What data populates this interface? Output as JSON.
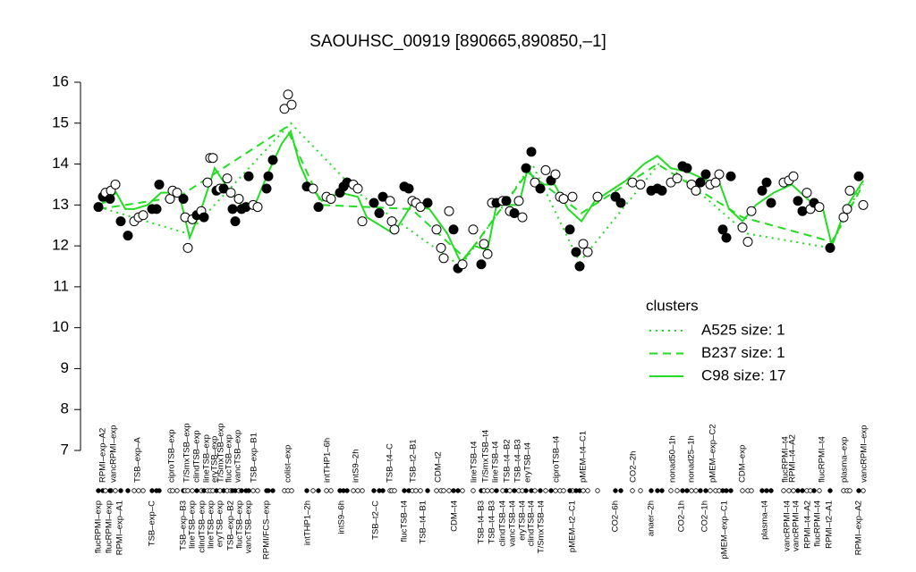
{
  "chart_data": {
    "type": "scatter",
    "title": "SAOUHSC_00919 [890665,890850,–1]",
    "ylim": [
      7,
      16
    ],
    "yticks": [
      7,
      8,
      9,
      10,
      11,
      12,
      13,
      14,
      15,
      16
    ],
    "xlim": [
      100,
      970
    ],
    "points": {
      "x": [
        110,
        115,
        118,
        124,
        123,
        129,
        135,
        143,
        150,
        155,
        160,
        170,
        175,
        178,
        190,
        193,
        198,
        205,
        207,
        210,
        215,
        220,
        225,
        228,
        232,
        235,
        238,
        242,
        246,
        250,
        254,
        258,
        260,
        263,
        267,
        270,
        275,
        278,
        283,
        288,
        298,
        300,
        305,
        318,
        322,
        326,
        343,
        350,
        356,
        365,
        370,
        380,
        384,
        388,
        395,
        400,
        405,
        418,
        424,
        428,
        436,
        438,
        441,
        452,
        457,
        461,
        465,
        470,
        478,
        488,
        493,
        496,
        502,
        507,
        512,
        517,
        529,
        538,
        541,
        545,
        550,
        555,
        562,
        566,
        570,
        575,
        580,
        584,
        588,
        594,
        598,
        604,
        610,
        616,
        621,
        626,
        630,
        640,
        637,
        644,
        648,
        652,
        657,
        668,
        688,
        694,
        707,
        716,
        728,
        735,
        740,
        750,
        757,
        763,
        768,
        773,
        778,
        783,
        789,
        794,
        800,
        804,
        808,
        812,
        817,
        830,
        836,
        840,
        852,
        857,
        862,
        876,
        882,
        887,
        892,
        897,
        902,
        906,
        910,
        916,
        928,
        943,
        947,
        950,
        960,
        965
      ],
      "values": [
        12.95,
        13.2,
        13.3,
        13.35,
        13.15,
        13.5,
        12.6,
        12.25,
        12.6,
        12.7,
        12.75,
        12.9,
        12.9,
        13.5,
        13.15,
        13.35,
        13.3,
        13.15,
        12.7,
        11.95,
        12.65,
        12.75,
        12.85,
        12.7,
        13.55,
        14.15,
        14.15,
        13.35,
        13.4,
        13.4,
        13.65,
        13.3,
        12.9,
        12.6,
        13.15,
        12.9,
        12.95,
        13.7,
        13.0,
        12.95,
        13.4,
        13.7,
        14.1,
        15.35,
        15.7,
        15.45,
        13.45,
        13.4,
        12.95,
        13.2,
        13.15,
        13.3,
        13.45,
        13.55,
        13.5,
        13.4,
        12.6,
        13.05,
        12.8,
        13.2,
        13.1,
        12.6,
        12.4,
        13.45,
        13.4,
        13.1,
        13.05,
        12.95,
        13.05,
        12.4,
        11.95,
        11.7,
        12.85,
        12.4,
        11.45,
        11.55,
        12.4,
        11.55,
        12.05,
        11.8,
        13.05,
        13.05,
        13.1,
        13.1,
        12.85,
        12.8,
        13.1,
        12.7,
        13.9,
        14.3,
        13.55,
        13.4,
        13.85,
        13.6,
        13.75,
        13.2,
        13.15,
        13.2,
        12.4,
        11.85,
        11.5,
        12.05,
        11.85,
        13.2,
        13.2,
        13.05,
        13.55,
        13.5,
        13.35,
        13.4,
        13.35,
        13.55,
        13.65,
        13.95,
        13.9,
        13.5,
        13.35,
        13.55,
        13.75,
        13.5,
        13.55,
        13.75,
        12.4,
        12.2,
        13.7,
        12.45,
        12.1,
        12.85,
        13.35,
        13.55,
        13.05,
        13.55,
        13.6,
        13.7,
        13.1,
        12.85,
        13.3,
        12.9,
        13.05,
        12.95,
        11.95,
        12.7,
        12.9,
        13.35,
        13.7,
        13.0
      ],
      "filled": [
        true,
        true,
        false,
        false,
        true,
        false,
        true,
        true,
        false,
        false,
        false,
        true,
        true,
        true,
        false,
        false,
        false,
        true,
        false,
        false,
        false,
        true,
        false,
        true,
        false,
        false,
        false,
        true,
        false,
        true,
        false,
        false,
        true,
        true,
        false,
        true,
        true,
        true,
        false,
        false,
        true,
        true,
        true,
        false,
        false,
        false,
        true,
        false,
        true,
        false,
        false,
        true,
        true,
        true,
        false,
        false,
        false,
        true,
        true,
        true,
        false,
        false,
        false,
        true,
        true,
        false,
        false,
        false,
        true,
        false,
        false,
        false,
        false,
        true,
        true,
        false,
        false,
        true,
        false,
        false,
        false,
        true,
        false,
        true,
        false,
        true,
        false,
        false,
        true,
        true,
        false,
        true,
        false,
        true,
        false,
        false,
        false,
        false,
        true,
        true,
        true,
        false,
        false,
        false,
        true,
        true,
        false,
        false,
        true,
        true,
        true,
        false,
        false,
        true,
        true,
        false,
        false,
        true,
        true,
        false,
        false,
        false,
        true,
        true,
        true,
        false,
        false,
        false,
        true,
        true,
        true,
        false,
        false,
        false,
        true,
        true,
        false,
        false,
        true,
        false,
        true,
        false,
        false,
        false,
        true,
        false
      ]
    },
    "legend_title": "clusters",
    "legend": "right",
    "series": [
      {
        "name": "A525 size: 1",
        "color": "#22dd22",
        "style": "dotted",
        "x": [
          110,
          210,
          325,
          400,
          515,
          595,
          648,
          740,
          835,
          928,
          965
        ],
        "values": [
          12.95,
          12.3,
          15.0,
          13.3,
          11.5,
          14.0,
          11.6,
          14.1,
          12.3,
          11.95,
          13.6
        ]
      },
      {
        "name": "B237 size: 1",
        "color": "#22dd22",
        "style": "dashed",
        "x": [
          110,
          200,
          320,
          360,
          460,
          520,
          590,
          650,
          735,
          830,
          930,
          965
        ],
        "values": [
          12.9,
          13.2,
          14.9,
          13.0,
          12.9,
          11.7,
          13.8,
          12.8,
          14.0,
          12.7,
          12.1,
          13.5
        ]
      },
      {
        "name": "C98 size: 17",
        "color": "#22dd22",
        "style": "solid",
        "x": [
          110,
          120,
          130,
          140,
          150,
          165,
          180,
          200,
          212,
          225,
          240,
          255,
          270,
          285,
          300,
          315,
          325,
          335,
          345,
          360,
          380,
          400,
          410,
          440,
          460,
          480,
          500,
          515,
          530,
          545,
          555,
          580,
          590,
          600,
          620,
          635,
          650,
          665,
          700,
          720,
          735,
          750,
          770,
          790,
          805,
          815,
          830,
          845,
          865,
          885,
          905,
          920,
          930,
          945,
          965
        ],
        "values": [
          13.0,
          13.1,
          13.3,
          12.9,
          12.9,
          13.0,
          13.3,
          13.3,
          12.2,
          12.9,
          13.9,
          13.4,
          13.0,
          13.0,
          13.8,
          14.5,
          14.8,
          14.0,
          13.5,
          13.1,
          13.3,
          13.2,
          12.7,
          12.3,
          13.0,
          12.9,
          12.3,
          11.6,
          12.0,
          11.9,
          13.0,
          13.0,
          13.9,
          13.5,
          13.5,
          12.9,
          12.6,
          13.1,
          13.6,
          14.0,
          14.2,
          13.9,
          13.8,
          13.6,
          13.5,
          12.9,
          12.6,
          13.0,
          13.3,
          13.5,
          13.1,
          12.9,
          12.0,
          12.9,
          13.6
        ]
      }
    ],
    "labels_top": {
      "x": [
        115,
        127,
        154,
        192,
        209,
        220,
        231,
        240,
        247,
        256,
        266,
        284,
        322,
        366,
        398,
        436,
        462,
        490,
        530,
        543,
        554,
        567,
        579,
        590,
        622,
        652,
        708,
        752,
        773,
        797,
        830,
        878,
        886,
        919,
        944,
        966
      ],
      "labels": [
        "RPMI–exp–A2",
        "vancRPMI–exp",
        "TSB–exp–A",
        "ciproTSB–exp",
        "T/SmxTSB–exp",
        "clindTSB–exp",
        "lineTSB–exp",
        "eryTSB–exp",
        "T/SmxTSB–exp",
        "flucTSB–exp",
        "vancTSB–exp",
        "TSB–exp–B1",
        "colist–exp",
        "intTHP1–6h",
        "intS9–2h",
        "TSB–t4–C",
        "TSB–t2–B1",
        "CDM–t2",
        "lineTSB–t4",
        "T/SmxTSB–t4",
        "lineTSB–t4",
        "TSB–t4–B2",
        "TSB–t4–B3",
        "eryTSB–t4",
        "ciproTSB–t4",
        "pMEM–t4–C1",
        "CO2–2h",
        "nonad50–1h",
        "nonad25–1h",
        "pMEM–exp–C2",
        "CDM–exp",
        "flucRPMI–t4",
        "RPMI–t4–A2",
        "flucRPMI–t4",
        "plasma–exp",
        "vancRPMI–exp"
      ]
    },
    "labels_bottom": {
      "x": [
        110,
        122,
        134,
        170,
        205,
        215,
        226,
        236,
        246,
        258,
        268,
        278,
        298,
        344,
        382,
        420,
        452,
        473,
        508,
        538,
        550,
        562,
        573,
        584,
        594,
        605,
        640,
        688,
        728,
        762,
        788,
        810,
        855,
        880,
        890,
        903,
        914,
        927,
        960
      ],
      "labels": [
        "flucRPMI–exp",
        "flucRPMI–exp",
        "RPMI–exp–A1",
        "TSB–exp–C",
        "TSB–exp–B3",
        "lineTSB–exp",
        "clindTSB–exp",
        "lineTSB–exp",
        "eryTSB–exp",
        "TSB–exp–B2",
        "flucTSB–exp",
        "vancTSB–exp",
        "RPMI/FCS–exp",
        "intTHP1–2h",
        "intS9–6h",
        "TSB–t2–C",
        "flucTSB–t4",
        "TSB–t4–B1",
        "CDM–t4",
        "TSB–t4–B3",
        "TSB–t4–B3",
        "clindTSB–t4",
        "vancTSB–t4",
        "eryTSB–t4",
        "clindTSB–t4",
        "T/SmxTSB–t4",
        "pMEM–t2–C1",
        "CO2–6h",
        "anaer–2h",
        "CO2–1h",
        "CO2–1h",
        "pMEM–exp–C1",
        "plasma–t4",
        "vancRPMI–t4",
        "vancRPMI–t4",
        "RPMI–t4–A2",
        "flucRPMI–t4",
        "RPMI–t2–A1",
        "RPMI–exp–A2"
      ]
    }
  }
}
